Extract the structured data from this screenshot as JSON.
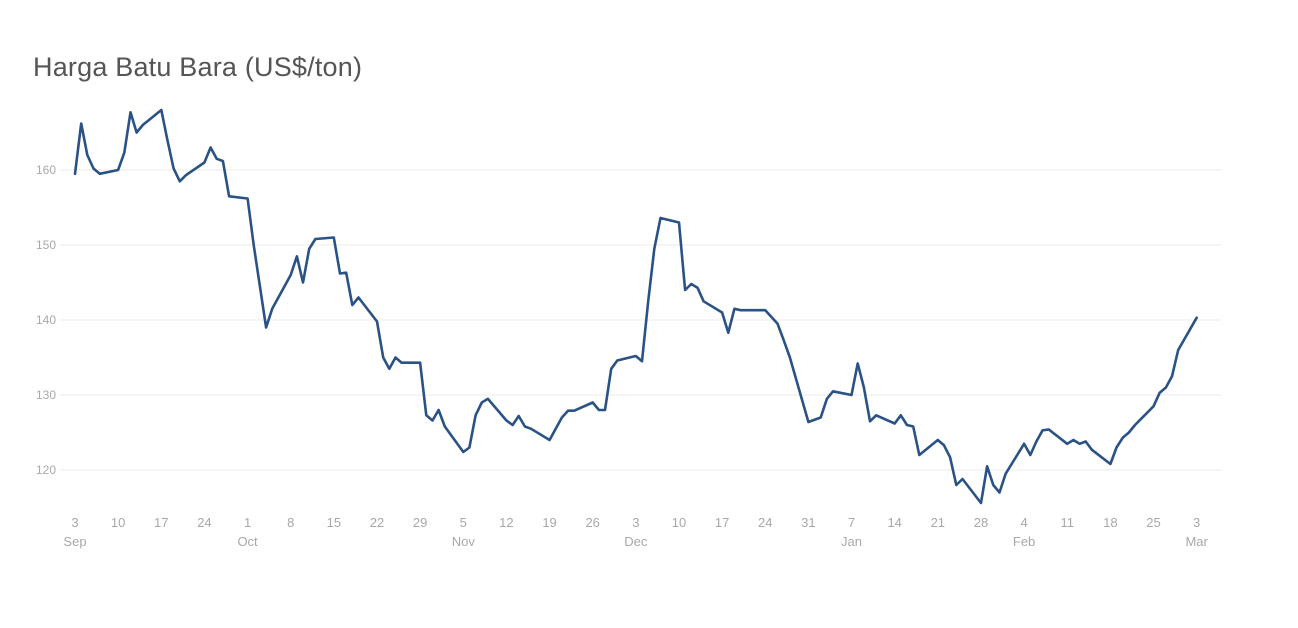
{
  "chart_data": {
    "type": "line",
    "title": "Harga Batu Bara (US$/ton)",
    "xlabel": "",
    "ylabel": "",
    "ylim": [
      114,
      169
    ],
    "grid": true,
    "legend": "none",
    "colors": {
      "line": "#2a5285",
      "grid": "#ebebeb",
      "tick_text": "#a8a8a8",
      "title": "#555555"
    },
    "y_ticks": [
      "120",
      "130",
      "140",
      "150",
      "160"
    ],
    "x_ticks": [
      {
        "day": "3",
        "month": "Sep"
      },
      {
        "day": "10",
        "month": ""
      },
      {
        "day": "17",
        "month": ""
      },
      {
        "day": "24",
        "month": ""
      },
      {
        "day": "1",
        "month": "Oct"
      },
      {
        "day": "8",
        "month": ""
      },
      {
        "day": "15",
        "month": ""
      },
      {
        "day": "22",
        "month": ""
      },
      {
        "day": "29",
        "month": ""
      },
      {
        "day": "5",
        "month": "Nov"
      },
      {
        "day": "12",
        "month": ""
      },
      {
        "day": "19",
        "month": ""
      },
      {
        "day": "26",
        "month": ""
      },
      {
        "day": "3",
        "month": "Dec"
      },
      {
        "day": "10",
        "month": ""
      },
      {
        "day": "17",
        "month": ""
      },
      {
        "day": "24",
        "month": ""
      },
      {
        "day": "31",
        "month": ""
      },
      {
        "day": "7",
        "month": "Jan"
      },
      {
        "day": "14",
        "month": ""
      },
      {
        "day": "21",
        "month": ""
      },
      {
        "day": "28",
        "month": ""
      },
      {
        "day": "4",
        "month": "Feb"
      },
      {
        "day": "11",
        "month": ""
      },
      {
        "day": "18",
        "month": ""
      },
      {
        "day": "25",
        "month": ""
      },
      {
        "day": "3",
        "month": "Mar"
      }
    ],
    "series": [
      {
        "x": [
          "Sep 3",
          "Sep 4",
          "Sep 5",
          "Sep 6",
          "Sep 7",
          "Sep 10",
          "Sep 11",
          "Sep 12",
          "Sep 13",
          "Sep 14",
          "Sep 17",
          "Sep 18",
          "Sep 19",
          "Sep 20",
          "Sep 21",
          "Sep 24",
          "Sep 25",
          "Sep 26",
          "Sep 27",
          "Sep 28",
          "Oct 1",
          "Oct 2",
          "Oct 3",
          "Oct 4",
          "Oct 5",
          "Oct 8",
          "Oct 9",
          "Oct 10",
          "Oct 11",
          "Oct 12",
          "Oct 15",
          "Oct 16",
          "Oct 17",
          "Oct 18",
          "Oct 19",
          "Oct 22",
          "Oct 23",
          "Oct 24",
          "Oct 25",
          "Oct 26",
          "Oct 29",
          "Oct 30",
          "Oct 31",
          "Nov 1",
          "Nov 2",
          "Nov 5",
          "Nov 6",
          "Nov 7",
          "Nov 8",
          "Nov 9",
          "Nov 12",
          "Nov 13",
          "Nov 14",
          "Nov 15",
          "Nov 16",
          "Nov 19",
          "Nov 20",
          "Nov 21",
          "Nov 22",
          "Nov 23",
          "Nov 26",
          "Nov 27",
          "Nov 28",
          "Nov 29",
          "Nov 30",
          "Dec 3",
          "Dec 4",
          "Dec 5",
          "Dec 6",
          "Dec 7",
          "Dec 10",
          "Dec 11",
          "Dec 12",
          "Dec 13",
          "Dec 14",
          "Dec 17",
          "Dec 18",
          "Dec 19",
          "Dec 20",
          "Dec 21",
          "Dec 24",
          "Dec 26",
          "Dec 27",
          "Dec 28",
          "Dec 31",
          "Jan 2",
          "Jan 3",
          "Jan 4",
          "Jan 7",
          "Jan 8",
          "Jan 9",
          "Jan 10",
          "Jan 11",
          "Jan 14",
          "Jan 15",
          "Jan 16",
          "Jan 17",
          "Jan 18",
          "Jan 21",
          "Jan 22",
          "Jan 23",
          "Jan 24",
          "Jan 25",
          "Jan 28",
          "Jan 29",
          "Jan 30",
          "Jan 31",
          "Feb 1",
          "Feb 4",
          "Feb 5",
          "Feb 6",
          "Feb 7",
          "Feb 8",
          "Feb 11",
          "Feb 12",
          "Feb 13",
          "Feb 14",
          "Feb 15",
          "Feb 18",
          "Feb 19",
          "Feb 20",
          "Feb 21",
          "Feb 22",
          "Feb 25",
          "Feb 26",
          "Feb 27",
          "Feb 28",
          "Mar 1",
          "Mar 4"
        ],
        "values": [
          159.5,
          166.2,
          162.0,
          160.2,
          159.5,
          160.0,
          162.3,
          167.7,
          165.0,
          166.0,
          168.0,
          164.0,
          160.2,
          158.5,
          159.3,
          161.0,
          163.0,
          161.5,
          161.2,
          156.5,
          156.2,
          150.0,
          144.5,
          139.0,
          141.5,
          146.0,
          148.5,
          145.0,
          149.5,
          150.8,
          151.0,
          146.2,
          146.3,
          142.0,
          143.0,
          139.8,
          135.0,
          133.5,
          135.0,
          134.3,
          134.3,
          127.3,
          126.6,
          128.0,
          125.8,
          122.4,
          123.0,
          127.3,
          129.0,
          129.5,
          126.6,
          126.0,
          127.2,
          125.8,
          125.5,
          124.0,
          125.5,
          127.0,
          127.9,
          127.9,
          129.0,
          128.0,
          128.0,
          133.5,
          134.6,
          135.2,
          134.5,
          142.5,
          149.5,
          153.6,
          153.0,
          144.0,
          144.8,
          144.3,
          142.5,
          141.0,
          138.3,
          141.5,
          141.3,
          141.3,
          141.3,
          139.5,
          137.3,
          135.0,
          126.4,
          127.0,
          129.5,
          130.5,
          130.0,
          134.2,
          131.0,
          126.5,
          127.3,
          126.2,
          127.3,
          126.0,
          125.8,
          122.0,
          124.0,
          123.3,
          121.7,
          118.0,
          118.8,
          115.6,
          120.5,
          118.0,
          117.0,
          119.5,
          123.5,
          122.0,
          123.8,
          125.3,
          125.4,
          123.5,
          124.0,
          123.5,
          123.8,
          122.7,
          120.8,
          123.0,
          124.3,
          125.0,
          126.0,
          128.5,
          130.3,
          131.0,
          132.5,
          136.0,
          140.3
        ]
      }
    ]
  }
}
